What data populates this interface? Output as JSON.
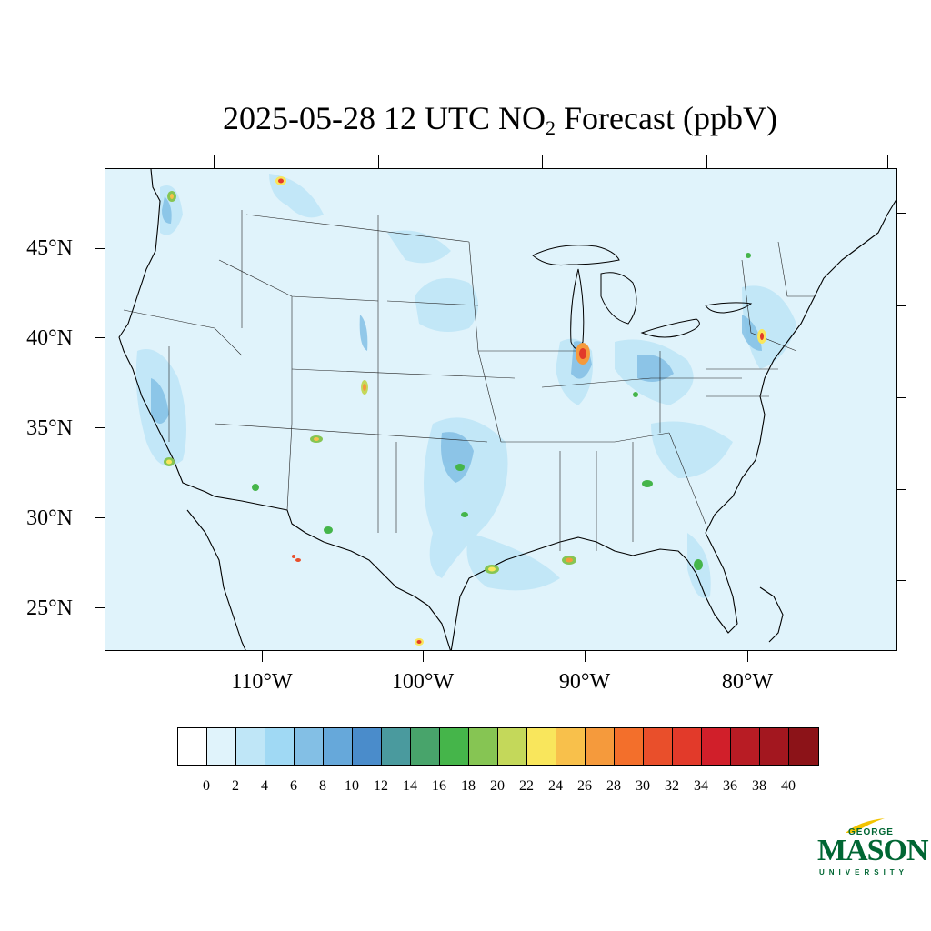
{
  "title": {
    "prefix": "2025-05-28 12 UTC NO",
    "subscript": "2",
    "suffix": " Forecast (ppbV)"
  },
  "map": {
    "background_color": "#e0f3fb",
    "lat_labels": [
      "45°N",
      "40°N",
      "35°N",
      "30°N",
      "25°N"
    ],
    "lon_labels": [
      "110°W",
      "100°W",
      "90°W",
      "80°W"
    ]
  },
  "colorbar": {
    "colors": [
      "#ffffff",
      "#e0f3fb",
      "#bfe6f7",
      "#a0d9f4",
      "#83bfe5",
      "#66a8da",
      "#4a8ccb",
      "#4a9a9e",
      "#48a46b",
      "#45b54a",
      "#86c553",
      "#c4d85a",
      "#f9e65c",
      "#f8c04b",
      "#f59a3c",
      "#f36f2b",
      "#e94f2b",
      "#e23a2a",
      "#d11f2a",
      "#b81c24",
      "#a3171f",
      "#8c1318"
    ],
    "labels": [
      "0",
      "2",
      "4",
      "6",
      "8",
      "10",
      "12",
      "14",
      "16",
      "18",
      "20",
      "22",
      "24",
      "26",
      "28",
      "30",
      "32",
      "34",
      "36",
      "38",
      "40"
    ]
  },
  "logo": {
    "line1": "GEORGE",
    "line2": "MASON",
    "line3": "UNIVERSITY",
    "color": "#006633",
    "accent": "#f2c300"
  }
}
